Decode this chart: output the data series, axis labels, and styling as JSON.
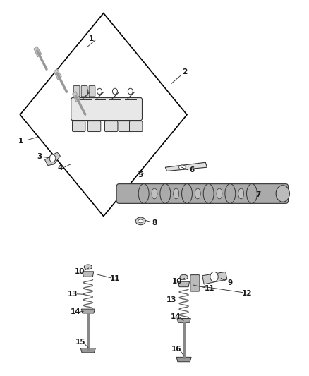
{
  "bg_color": "#ffffff",
  "fig_width": 4.38,
  "fig_height": 5.33,
  "dpi": 100,
  "line_color": "#333333",
  "text_color": "#222222",
  "part_color": "#555555",
  "diamond_color": "#000000",
  "label_fontsize": 7.5,
  "label_color": "#1a1a1a",
  "bolt_color": "#999999",
  "shaft_color": "#aaaaaa",
  "lobe_color": "#aaaaaa",
  "spring_color": "#666666",
  "retainer_color": "#bbbbbb",
  "seat_color": "#aaaaaa",
  "valve_color": "#888888",
  "body_color": "#e8e8e8",
  "cap_color": "#dddddd",
  "gasket_color": "#e0e0e0",
  "rocker_color": "#cccccc"
}
